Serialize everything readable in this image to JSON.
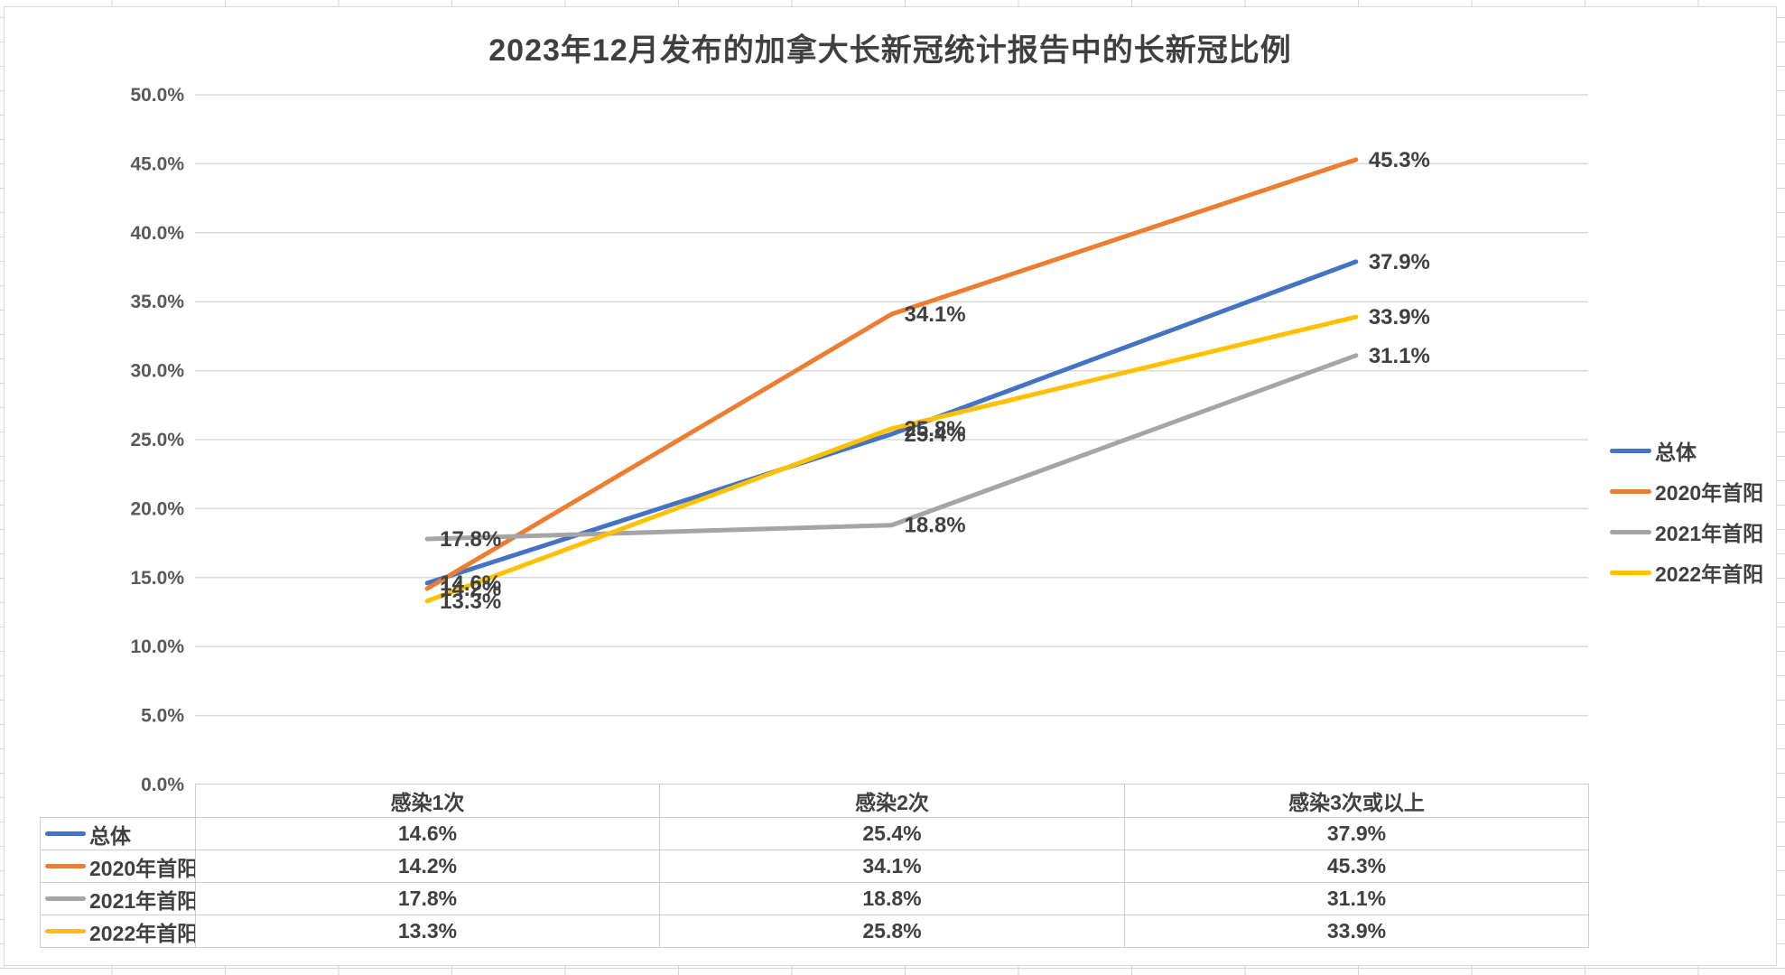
{
  "title": "2023年12月发布的加拿大长新冠统计报告中的长新冠比例",
  "chart_data": {
    "type": "line",
    "title": "2023年12月发布的加拿大长新冠统计报告中的长新冠比例",
    "categories": [
      "感染1次",
      "感染2次",
      "感染3次或以上"
    ],
    "series": [
      {
        "name": "总体",
        "color": "#4472C4",
        "values": [
          14.6,
          25.4,
          37.9
        ]
      },
      {
        "name": "2020年首阳",
        "color": "#ED7D31",
        "values": [
          14.2,
          34.1,
          45.3
        ]
      },
      {
        "name": "2021年首阳",
        "color": "#A5A5A5",
        "values": [
          17.8,
          18.8,
          31.1
        ]
      },
      {
        "name": "2022年首阳",
        "color": "#FFC000",
        "values": [
          13.3,
          25.8,
          33.9
        ]
      }
    ],
    "y_axis": {
      "min": 0,
      "max": 50,
      "step": 5,
      "decimals": 1,
      "suffix": "%"
    },
    "grid": true,
    "legend_position": "right",
    "data_labels": true,
    "data_table": true,
    "colors": {
      "title_text": "#3f3f3f",
      "label_text": "#404040",
      "axis_text": "#595959",
      "gridline": "#d9d9d9"
    }
  }
}
